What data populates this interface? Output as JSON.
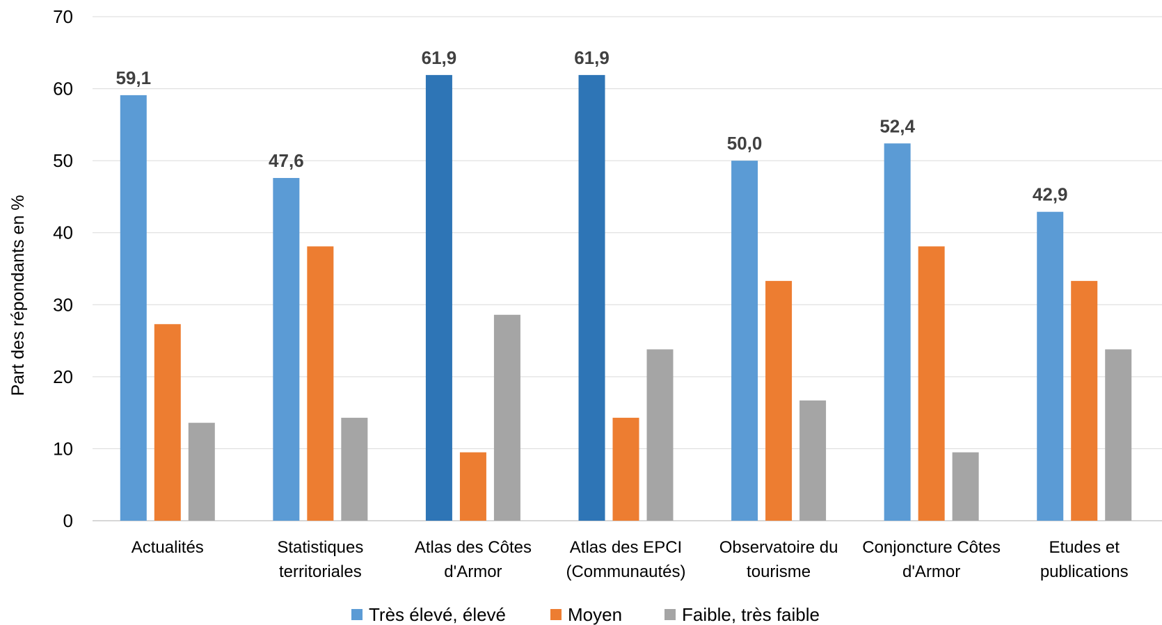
{
  "chart_data": {
    "type": "bar",
    "title": "",
    "xlabel": "",
    "ylabel": "Part des répondants en %",
    "ylim": [
      0,
      70
    ],
    "yticks": [
      0,
      10,
      20,
      30,
      40,
      50,
      60,
      70
    ],
    "grid": true,
    "legend_position": "bottom",
    "categories": [
      [
        "Actualités"
      ],
      [
        "Statistiques",
        "territoriales"
      ],
      [
        "Atlas des Côtes",
        "d'Armor"
      ],
      [
        "Atlas des EPCI",
        "(Communautés)"
      ],
      [
        "Observatoire du",
        "tourisme"
      ],
      [
        "Conjoncture Côtes",
        "d'Armor"
      ],
      [
        "Etudes et",
        "publications"
      ]
    ],
    "series": [
      {
        "name": "Très élevé, élevé",
        "color": "#5b9bd5",
        "highlight_color": "#2e75b6",
        "highlight_indices": [
          2,
          3
        ],
        "values": [
          59.1,
          47.6,
          61.9,
          61.9,
          50.0,
          52.4,
          42.9
        ],
        "data_labels": [
          "59,1",
          "47,6",
          "61,9",
          "61,9",
          "50,0",
          "52,4",
          "42,9"
        ]
      },
      {
        "name": "Moyen",
        "color": "#ed7d31",
        "values": [
          27.3,
          38.1,
          9.5,
          14.3,
          33.3,
          38.1,
          33.3
        ]
      },
      {
        "name": "Faible, très faible",
        "color": "#a5a5a5",
        "values": [
          13.6,
          14.3,
          28.6,
          23.8,
          16.7,
          9.5,
          23.8
        ]
      }
    ]
  }
}
